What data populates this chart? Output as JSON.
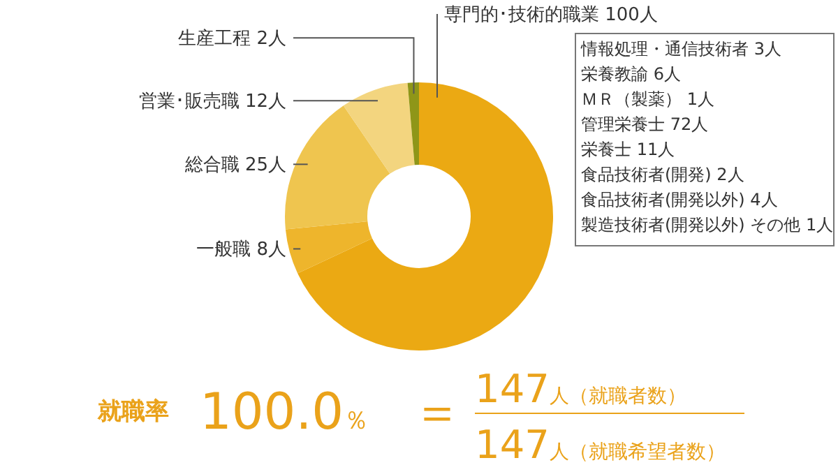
{
  "chart_data": {
    "type": "donut",
    "categories": [
      "専門的･技術的職業",
      "一般職",
      "総合職",
      "営業･販売職",
      "生産工程"
    ],
    "values": [
      100,
      8,
      25,
      12,
      2
    ],
    "value_labels": [
      "100人",
      "8人",
      "25人",
      "12人",
      "2人"
    ],
    "colors": [
      "#eba913",
      "#eeb52c",
      "#efc54f",
      "#f3d57f",
      "#8f9618"
    ],
    "annotations": [
      "情報処理・通信技術者 3人",
      "栄養教諭 6人",
      "ＭＲ（製薬） 1人",
      "管理栄養士 72人",
      "栄養士 11人",
      "食品技術者(開発) 2人",
      "食品技術者(開発以外) 4人",
      "製造技術者(開発以外) その他 1人",
      "就職率",
      "100.0％",
      "＝",
      "147人（就職者数）",
      "147人（就職希望者数）"
    ]
  }
}
